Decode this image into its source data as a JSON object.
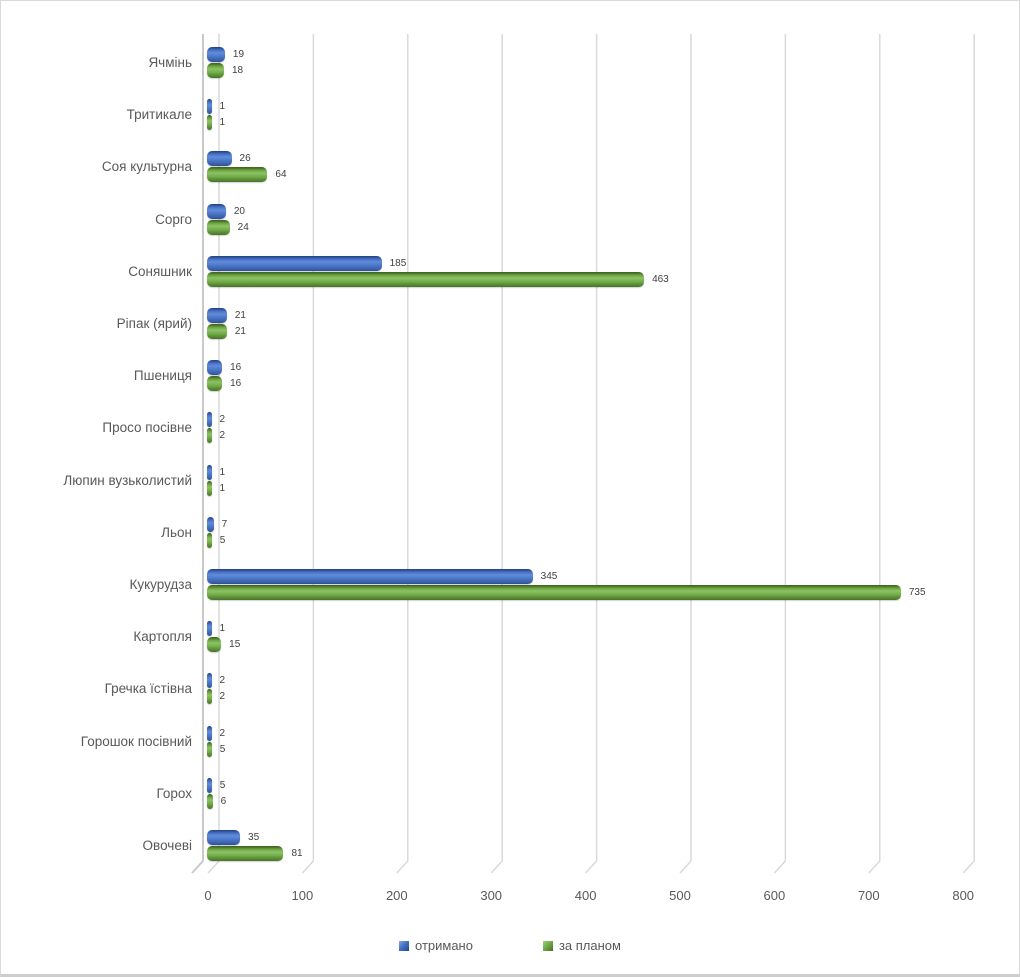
{
  "chart_data": {
    "type": "bar",
    "orientation": "horizontal",
    "style": "3d-rounded",
    "title": "",
    "xlabel": "",
    "ylabel": "",
    "categories": [
      "Ячмінь",
      "Тритикале",
      "Соя культурна",
      "Сорго",
      "Соняшник",
      "Ріпак (ярий)",
      "Пшениця",
      "Просо посівне",
      "Люпин вузьколистий",
      "Льон",
      "Кукурудза",
      "Картопля",
      "Гречка їстівна",
      "Горошок посівний",
      "Горох",
      "Овочеві"
    ],
    "series": [
      {
        "name": "отримано",
        "color": "#4472C4",
        "values": [
          19,
          1,
          26,
          20,
          185,
          21,
          16,
          2,
          1,
          7,
          345,
          1,
          2,
          2,
          5,
          35
        ]
      },
      {
        "name": "за планом",
        "color": "#70AD47",
        "values": [
          18,
          1,
          64,
          24,
          463,
          21,
          16,
          2,
          1,
          5,
          735,
          15,
          2,
          5,
          6,
          81
        ]
      }
    ],
    "xlim": [
      0,
      800
    ],
    "x_ticks": [
      0,
      100,
      200,
      300,
      400,
      500,
      600,
      700,
      800
    ],
    "grid": "vertical-gridlines",
    "legend_position": "bottom",
    "data_labels": "shown-at-bar-end"
  },
  "colors": {
    "background": "#ffffff",
    "frame_border": "#d9d9d9",
    "gridline": "#d9d9d9",
    "axis_line": "#c9c9c9",
    "category_text": "#595959",
    "tick_text": "#595959",
    "value_text": "#3f3f3f",
    "series_blue": "#4472C4",
    "series_green": "#70AD47"
  }
}
